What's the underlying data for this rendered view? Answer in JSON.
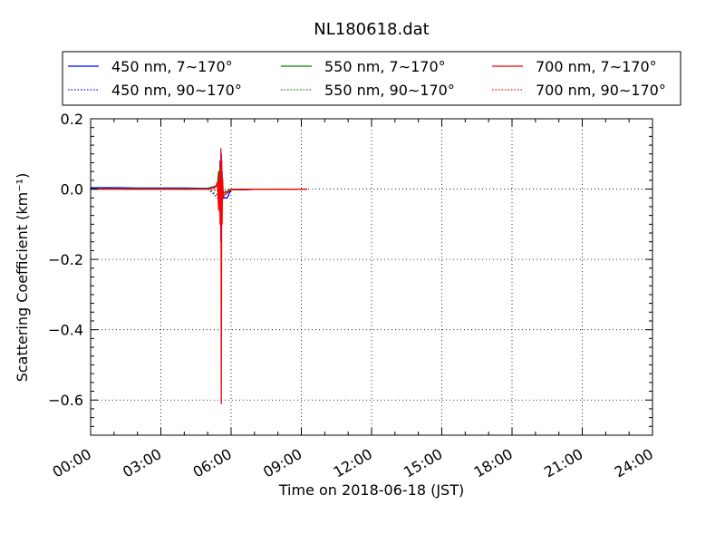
{
  "chart_data": {
    "type": "line",
    "title": "NL180618.dat",
    "xlabel": "Time on 2018-06-18 (JST)",
    "ylabel": "Scattering Coefficient (km⁻¹)",
    "xlim": [
      "00:00",
      "24:00"
    ],
    "ylim": [
      -0.7,
      0.2
    ],
    "x_ticks": [
      "00:00",
      "03:00",
      "06:00",
      "09:00",
      "12:00",
      "15:00",
      "18:00",
      "21:00",
      "24:00"
    ],
    "y_ticks": [
      "−0.6",
      "−0.4",
      "−0.2",
      "0.0",
      "0.2"
    ],
    "y_tick_values": [
      -0.6,
      -0.4,
      -0.2,
      0.0,
      0.2
    ],
    "grid": true,
    "grid_style": "dotted",
    "legend_placement": "top, above plot",
    "legend_columns": 3,
    "series": [
      {
        "name": "450 nm, 7∼170°",
        "color": "#0000ff",
        "style": "solid",
        "x": [
          "00:00",
          "01:00",
          "02:00",
          "03:00",
          "04:00",
          "05:00",
          "05:25",
          "05:30",
          "05:32",
          "05:34",
          "05:35",
          "05:36",
          "05:37",
          "05:38",
          "05:40",
          "05:42",
          "05:45",
          "05:50",
          "06:00",
          "06:30",
          "07:00",
          "08:00",
          "09:00",
          "09:15"
        ],
        "y": [
          0.004,
          0.004,
          0.003,
          0.003,
          0.003,
          0.002,
          0.01,
          -0.05,
          0.08,
          -0.15,
          0.1,
          -0.1,
          0.05,
          -0.03,
          -0.02,
          -0.025,
          -0.025,
          -0.025,
          -0.002,
          -0.002,
          -0.001,
          -0.001,
          0.0,
          0.0
        ]
      },
      {
        "name": "450 nm, 90∼170°",
        "color": "#0000ff",
        "style": "dotted",
        "x": [
          "00:00",
          "01:00",
          "02:00",
          "03:00",
          "04:00",
          "05:00",
          "05:30",
          "05:34",
          "05:36",
          "05:38",
          "05:40",
          "05:45",
          "06:00",
          "07:00",
          "08:00",
          "09:00",
          "09:15"
        ],
        "y": [
          0.002,
          0.002,
          0.002,
          0.001,
          0.001,
          0.001,
          -0.03,
          0.05,
          -0.08,
          0.03,
          -0.01,
          -0.012,
          -0.001,
          -0.001,
          0.0,
          0.0,
          0.0
        ]
      },
      {
        "name": "550 nm, 7∼170°",
        "color": "#008000",
        "style": "solid",
        "x": [
          "00:00",
          "01:00",
          "02:00",
          "03:00",
          "04:00",
          "05:00",
          "05:25",
          "05:28",
          "05:30",
          "05:32",
          "05:34",
          "05:36",
          "05:38",
          "05:40",
          "05:45",
          "06:00",
          "07:00",
          "08:00",
          "09:00",
          "09:15"
        ],
        "y": [
          0.001,
          0.001,
          0.001,
          0.001,
          0.001,
          0.001,
          0.01,
          0.05,
          -0.04,
          0.06,
          -0.03,
          0.05,
          -0.02,
          -0.01,
          -0.01,
          -0.001,
          0.0,
          0.0,
          0.0,
          0.0
        ]
      },
      {
        "name": "550 nm, 90∼170°",
        "color": "#008000",
        "style": "dotted",
        "x": [
          "00:00",
          "02:00",
          "04:00",
          "05:00",
          "05:30",
          "05:34",
          "05:38",
          "05:45",
          "06:00",
          "08:00",
          "09:15"
        ],
        "y": [
          0.0,
          0.0,
          0.0,
          0.0,
          -0.02,
          0.03,
          -0.01,
          -0.005,
          0.0,
          0.0,
          0.0
        ]
      },
      {
        "name": "700 nm, 7∼170°",
        "color": "#ff0000",
        "style": "solid",
        "x": [
          "00:00",
          "01:00",
          "02:00",
          "03:00",
          "04:00",
          "05:00",
          "05:20",
          "05:25",
          "05:28",
          "05:30",
          "05:32",
          "05:34",
          "05:35",
          "05:36",
          "05:37",
          "05:38",
          "05:40",
          "05:45",
          "05:50",
          "06:00",
          "07:00",
          "08:00",
          "09:00",
          "09:15"
        ],
        "y": [
          0.0,
          0.0,
          -0.001,
          0.0,
          -0.001,
          0.0,
          0.005,
          0.02,
          -0.06,
          0.05,
          -0.1,
          0.115,
          -0.61,
          0.08,
          -0.1,
          0.03,
          -0.02,
          -0.015,
          -0.012,
          -0.002,
          -0.001,
          0.0,
          0.0,
          0.0
        ]
      },
      {
        "name": "700 nm, 90∼170°",
        "color": "#ff0000",
        "style": "dotted",
        "x": [
          "00:00",
          "02:00",
          "04:00",
          "05:00",
          "05:25",
          "05:30",
          "05:33",
          "05:36",
          "05:38",
          "05:40",
          "05:45",
          "06:00",
          "08:00",
          "09:15"
        ],
        "y": [
          -0.001,
          -0.001,
          -0.001,
          -0.001,
          -0.005,
          0.04,
          -0.09,
          0.06,
          -0.03,
          -0.01,
          -0.008,
          -0.001,
          0.0,
          0.0
        ]
      }
    ]
  }
}
